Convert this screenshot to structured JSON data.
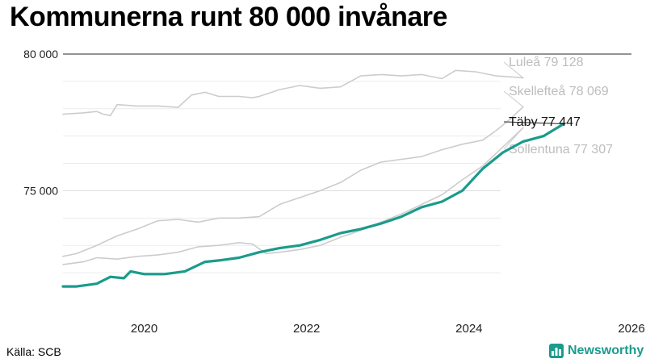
{
  "title": "Kommunerna runt 80 000 invånare",
  "source": "Källa: SCB",
  "brand": {
    "name": "Newsworthy",
    "color": "#1a9b8c",
    "icon": "chart-logo-icon"
  },
  "chart_data": {
    "type": "line",
    "x_start": "2019-01",
    "x_end": "2026-01",
    "ylim": [
      71000,
      80000
    ],
    "y_ticks": [
      {
        "value": 75000,
        "label": "75 000"
      },
      {
        "value": 80000,
        "label": "80 000"
      }
    ],
    "x_ticks": [
      {
        "value": "2020-01",
        "label": "2020"
      },
      {
        "value": "2022-01",
        "label": "2022"
      },
      {
        "value": "2024-01",
        "label": "2024"
      },
      {
        "value": "2026-01",
        "label": "2026"
      }
    ],
    "grid": "horizontal",
    "series": [
      {
        "name": "Luleå",
        "color": "#cccccc",
        "highlight": false,
        "label": "Luleå 79 128",
        "data": [
          [
            "2019-01",
            77800
          ],
          [
            "2019-04",
            77850
          ],
          [
            "2019-06",
            77900
          ],
          [
            "2019-07",
            77800
          ],
          [
            "2019-08",
            77750
          ],
          [
            "2019-09",
            78150
          ],
          [
            "2019-12",
            78100
          ],
          [
            "2020-03",
            78100
          ],
          [
            "2020-06",
            78050
          ],
          [
            "2020-08",
            78500
          ],
          [
            "2020-10",
            78600
          ],
          [
            "2020-12",
            78450
          ],
          [
            "2021-03",
            78450
          ],
          [
            "2021-05",
            78400
          ],
          [
            "2021-06",
            78450
          ],
          [
            "2021-09",
            78700
          ],
          [
            "2021-12",
            78850
          ],
          [
            "2022-03",
            78750
          ],
          [
            "2022-06",
            78800
          ],
          [
            "2022-09",
            79200
          ],
          [
            "2022-12",
            79250
          ],
          [
            "2023-03",
            79200
          ],
          [
            "2023-06",
            79250
          ],
          [
            "2023-09",
            79100
          ],
          [
            "2023-11",
            79400
          ],
          [
            "2024-02",
            79350
          ],
          [
            "2024-05",
            79200
          ],
          [
            "2024-08",
            79150
          ],
          [
            "2024-09",
            79128
          ]
        ]
      },
      {
        "name": "Skellefteå",
        "color": "#cccccc",
        "highlight": false,
        "label": "Skellefteå 78 069",
        "data": [
          [
            "2019-01",
            72600
          ],
          [
            "2019-03",
            72700
          ],
          [
            "2019-06",
            73000
          ],
          [
            "2019-09",
            73350
          ],
          [
            "2019-12",
            73600
          ],
          [
            "2020-03",
            73900
          ],
          [
            "2020-06",
            73950
          ],
          [
            "2020-09",
            73850
          ],
          [
            "2020-12",
            74000
          ],
          [
            "2021-03",
            74000
          ],
          [
            "2021-06",
            74050
          ],
          [
            "2021-09",
            74500
          ],
          [
            "2021-12",
            74750
          ],
          [
            "2022-03",
            75000
          ],
          [
            "2022-06",
            75300
          ],
          [
            "2022-09",
            75750
          ],
          [
            "2022-12",
            76050
          ],
          [
            "2023-03",
            76150
          ],
          [
            "2023-06",
            76250
          ],
          [
            "2023-09",
            76500
          ],
          [
            "2023-12",
            76700
          ],
          [
            "2024-03",
            76850
          ],
          [
            "2024-05",
            77200
          ],
          [
            "2024-07",
            77600
          ],
          [
            "2024-09",
            78069
          ]
        ]
      },
      {
        "name": "Sollentuna",
        "color": "#cccccc",
        "highlight": false,
        "label": "Sollentuna 77 307",
        "data": [
          [
            "2019-01",
            72300
          ],
          [
            "2019-04",
            72400
          ],
          [
            "2019-06",
            72550
          ],
          [
            "2019-09",
            72500
          ],
          [
            "2019-12",
            72600
          ],
          [
            "2020-03",
            72650
          ],
          [
            "2020-06",
            72750
          ],
          [
            "2020-09",
            72950
          ],
          [
            "2020-12",
            73000
          ],
          [
            "2021-03",
            73100
          ],
          [
            "2021-05",
            73050
          ],
          [
            "2021-07",
            72700
          ],
          [
            "2021-09",
            72750
          ],
          [
            "2021-12",
            72850
          ],
          [
            "2022-03",
            73000
          ],
          [
            "2022-06",
            73300
          ],
          [
            "2022-09",
            73550
          ],
          [
            "2022-12",
            73850
          ],
          [
            "2023-03",
            74150
          ],
          [
            "2023-06",
            74500
          ],
          [
            "2023-09",
            74850
          ],
          [
            "2023-12",
            75400
          ],
          [
            "2024-03",
            75900
          ],
          [
            "2024-06",
            76600
          ],
          [
            "2024-09",
            77307
          ]
        ]
      },
      {
        "name": "Täby",
        "color": "#1a9b8c",
        "highlight": true,
        "label": "Täby 77 447",
        "data": [
          [
            "2019-01",
            71500
          ],
          [
            "2019-03",
            71500
          ],
          [
            "2019-06",
            71600
          ],
          [
            "2019-08",
            71850
          ],
          [
            "2019-10",
            71800
          ],
          [
            "2019-11",
            72050
          ],
          [
            "2020-01",
            71950
          ],
          [
            "2020-04",
            71950
          ],
          [
            "2020-07",
            72050
          ],
          [
            "2020-10",
            72400
          ],
          [
            "2020-12",
            72450
          ],
          [
            "2021-03",
            72550
          ],
          [
            "2021-06",
            72750
          ],
          [
            "2021-09",
            72900
          ],
          [
            "2021-12",
            73000
          ],
          [
            "2022-03",
            73200
          ],
          [
            "2022-06",
            73450
          ],
          [
            "2022-09",
            73600
          ],
          [
            "2022-12",
            73800
          ],
          [
            "2023-03",
            74050
          ],
          [
            "2023-06",
            74400
          ],
          [
            "2023-09",
            74600
          ],
          [
            "2023-12",
            75000
          ],
          [
            "2024-03",
            75800
          ],
          [
            "2024-06",
            76400
          ],
          [
            "2024-09",
            76800
          ],
          [
            "2024-12",
            77000
          ],
          [
            "2025-03",
            77447
          ]
        ]
      }
    ]
  }
}
